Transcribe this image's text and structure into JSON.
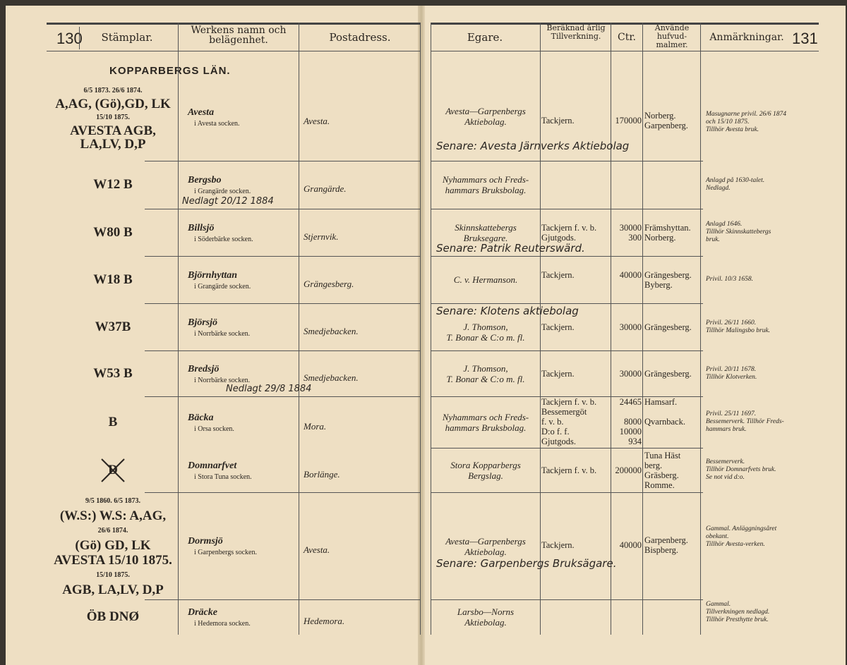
{
  "left_page": {
    "page_number": "130",
    "headers": {
      "stamps": "Stämplar.",
      "works": "Werkens namn och belägenhet.",
      "post": "Postadress."
    },
    "county": "KOPPARBERGS LÄN."
  },
  "right_page": {
    "page_number": "131",
    "headers": {
      "owner": "Egare.",
      "production": "Beräknad årlig Tillverkning.",
      "ctr": "Ctr.",
      "ores": "Använde hufvud-malmer.",
      "remarks": "Anmärkningar."
    }
  },
  "rows": [
    {
      "stamps": [
        "6/5 1873.   26/6 1874.",
        "A,AG, (Gö),GD, LK",
        "15/10 1875.",
        "AVESTA AGB,",
        "LA,LV, D,P"
      ],
      "name": "Avesta",
      "parish": "i Avesta socken.",
      "post": "Avesta.",
      "owner": [
        "Avesta—Garpenbergs",
        "Aktiebolag."
      ],
      "products": [
        "Tackjern."
      ],
      "ctr": [
        "170000"
      ],
      "ores": [
        "Norberg.",
        "Garpenberg."
      ],
      "remarks": [
        "Masugnarne privil. 26/6 1874",
        "och 15/10 1875.",
        "Tillhör Avesta bruk."
      ],
      "handwritten_right": "Senare: Avesta Järnverks Aktiebolag"
    },
    {
      "stamps": [
        "W12 B"
      ],
      "name": "Bergsbo",
      "parish": "i Grangärde socken.",
      "post": "Grangärde.",
      "owner": [
        "Nyhammars och Freds-",
        "hammars Bruksbolag."
      ],
      "products": [],
      "ctr": [],
      "ores": [],
      "remarks": [
        "Anlagd på 1630-talet.",
        "Nedlagd."
      ],
      "handwritten_left": "Nedlagt 20/12 1884"
    },
    {
      "stamps": [
        "W80 B"
      ],
      "name": "Billsjö",
      "parish": "i Söderbärke socken.",
      "post": "Stjernvik.",
      "owner": [
        "Skinnskattebergs",
        "Bruksegare."
      ],
      "products": [
        "Tackjern f. v. b.",
        "Gjutgods."
      ],
      "ctr": [
        "30000",
        "300"
      ],
      "ores": [
        "Främshyttan.",
        "Norberg."
      ],
      "remarks": [
        "Anlagd 1646.",
        "Tillhör Skinnskattebergs",
        "bruk."
      ],
      "handwritten_right": "Senare: Patrik Reuterswärd."
    },
    {
      "stamps": [
        "W18 B"
      ],
      "name": "Björnhyttan",
      "parish": "i Grangärde socken.",
      "post": "Grängesberg.",
      "owner": [
        "C. v. Hermanson."
      ],
      "products": [
        "Tackjern."
      ],
      "ctr": [
        "40000"
      ],
      "ores": [
        "Grängesberg.",
        "Byberg."
      ],
      "remarks": [
        "Privil. 10/3 1658."
      ]
    },
    {
      "stamps": [
        "W37B"
      ],
      "name": "Björsjö",
      "parish": "i Norrbärke socken.",
      "post": "Smedjebacken.",
      "owner": [
        "J. Thomson,",
        "T. Bonar & C:o m. fl."
      ],
      "products": [
        "Tackjern."
      ],
      "ctr": [
        "30000"
      ],
      "ores": [
        "Grängesberg."
      ],
      "remarks": [
        "Privil. 26/11 1660.",
        "Tillhör Malingsbo bruk."
      ],
      "handwritten_right": "Senare: Klotens aktiebolag"
    },
    {
      "stamps": [
        "W53 B"
      ],
      "name": "Bredsjö",
      "parish": "i Norrbärke socken.",
      "post": "Smedjebacken.",
      "owner": [
        "J. Thomson,",
        "T. Bonar & C:o m. fl."
      ],
      "products": [
        "Tackjern."
      ],
      "ctr": [
        "30000"
      ],
      "ores": [
        "Grängesberg."
      ],
      "remarks": [
        "Privil. 20/11 1678.",
        "Tillhör Klotverken."
      ],
      "handwritten_left": "Nedlagt 29/8 1884"
    },
    {
      "stamps": [
        "B"
      ],
      "name": "Bäcka",
      "parish": "i Orsa socken.",
      "post": "Mora.",
      "owner": [
        "Nyhammars och Freds-",
        "hammars Bruksbolag."
      ],
      "products": [
        "Tackjern f. v. b.",
        "Bessemergöt",
        "  f. v. b.",
        "D:o f. f.",
        "Gjutgods."
      ],
      "ctr": [
        "24465",
        "",
        "8000",
        "10000",
        "934"
      ],
      "ores": [
        "Hamsarf.",
        "",
        "Qvarnback.",
        "",
        ""
      ],
      "remarks": [
        "Privil. 25/11 1697.",
        "Bessemerverk. Tillhör Freds-",
        "hammars bruk."
      ]
    },
    {
      "stamps": [
        "D"
      ],
      "name": "Domnarfvet",
      "parish": "i Stora Tuna socken.",
      "post": "Borlänge.",
      "owner": [
        "Stora Kopparbergs",
        "Bergslag."
      ],
      "products": [
        "Tackjern f. v. b."
      ],
      "ctr": [
        "200000"
      ],
      "ores": [
        "Tuna Häst",
        " berg.",
        "Gräsberg.",
        "Romme."
      ],
      "remarks": [
        "Bessemerverk.",
        "Tillhör Domnarfvets bruk.",
        "Se not vid d:o."
      ]
    },
    {
      "stamps": [
        "9/5 1860.     6/5 1873.",
        "(W.S:) W.S:  A,AG,",
        "26/6 1874.",
        "(Gö)  GD, LK",
        "AVESTA 15/10 1875.",
        "15/10 1875.",
        "AGB, LA,LV, D,P"
      ],
      "name": "Dormsjö",
      "parish": "i Garpenbergs socken.",
      "post": "Avesta.",
      "owner": [
        "Avesta—Garpenbergs",
        "Aktiebolag."
      ],
      "products": [
        "Tackjern."
      ],
      "ctr": [
        "40000"
      ],
      "ores": [
        "Garpenberg.",
        "Bispberg."
      ],
      "remarks": [
        "Gammal. Anläggningsåret",
        "obekant.",
        "Tillhör Avesta-verken."
      ],
      "handwritten_right": "Senare: Garpenbergs Bruksägare."
    },
    {
      "stamps": [
        "ÖB DNØ"
      ],
      "name": "Dräcke",
      "parish": "i Hedemora socken.",
      "post": "Hedemora.",
      "owner": [
        "Larsbo—Norns",
        "Aktiebolag."
      ],
      "products": [],
      "ctr": [],
      "ores": [],
      "remarks": [
        "Gammal.",
        "Tillverkningen nedlagd.",
        "Tillhör Presthytte bruk."
      ]
    }
  ]
}
